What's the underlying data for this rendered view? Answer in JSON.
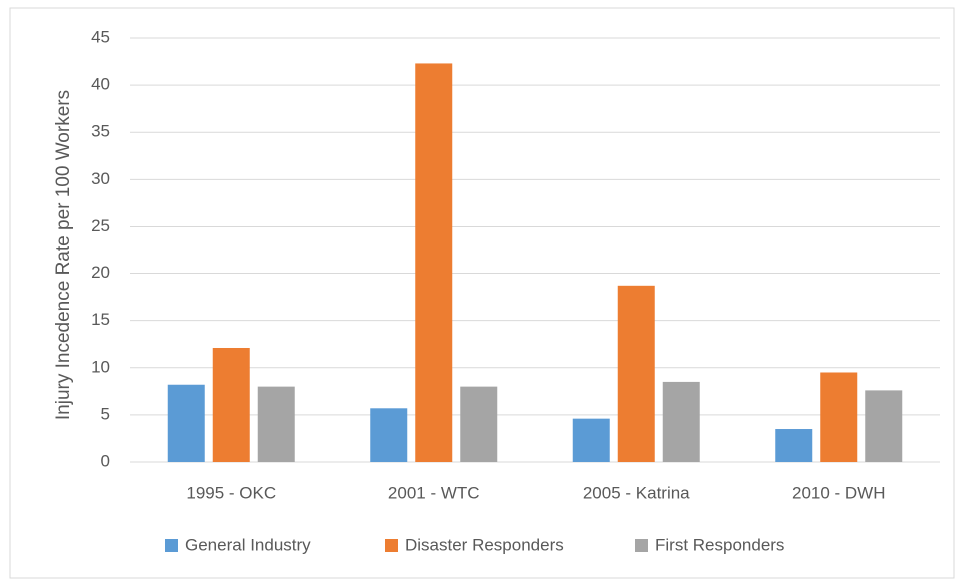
{
  "chart_data": {
    "type": "bar",
    "y_label": "Injury Incedence Rate per 100 Workers",
    "categories": [
      "1995 - OKC",
      "2001 - WTC",
      "2005 - Katrina",
      "2010 - DWH"
    ],
    "series": [
      {
        "name": "General Industry",
        "color": "#5b9bd5",
        "values": [
          8.2,
          5.7,
          4.6,
          3.5
        ]
      },
      {
        "name": "Disaster Responders",
        "color": "#ed7d31",
        "values": [
          12.1,
          42.3,
          18.7,
          9.5
        ]
      },
      {
        "name": "First Responders",
        "color": "#a5a5a5",
        "values": [
          8.0,
          8.0,
          8.5,
          7.6
        ]
      }
    ],
    "ylim": [
      0,
      45
    ],
    "yticks": [
      0,
      5,
      10,
      15,
      20,
      25,
      30,
      35,
      40,
      45
    ],
    "grid": true,
    "legend": "bottom"
  }
}
